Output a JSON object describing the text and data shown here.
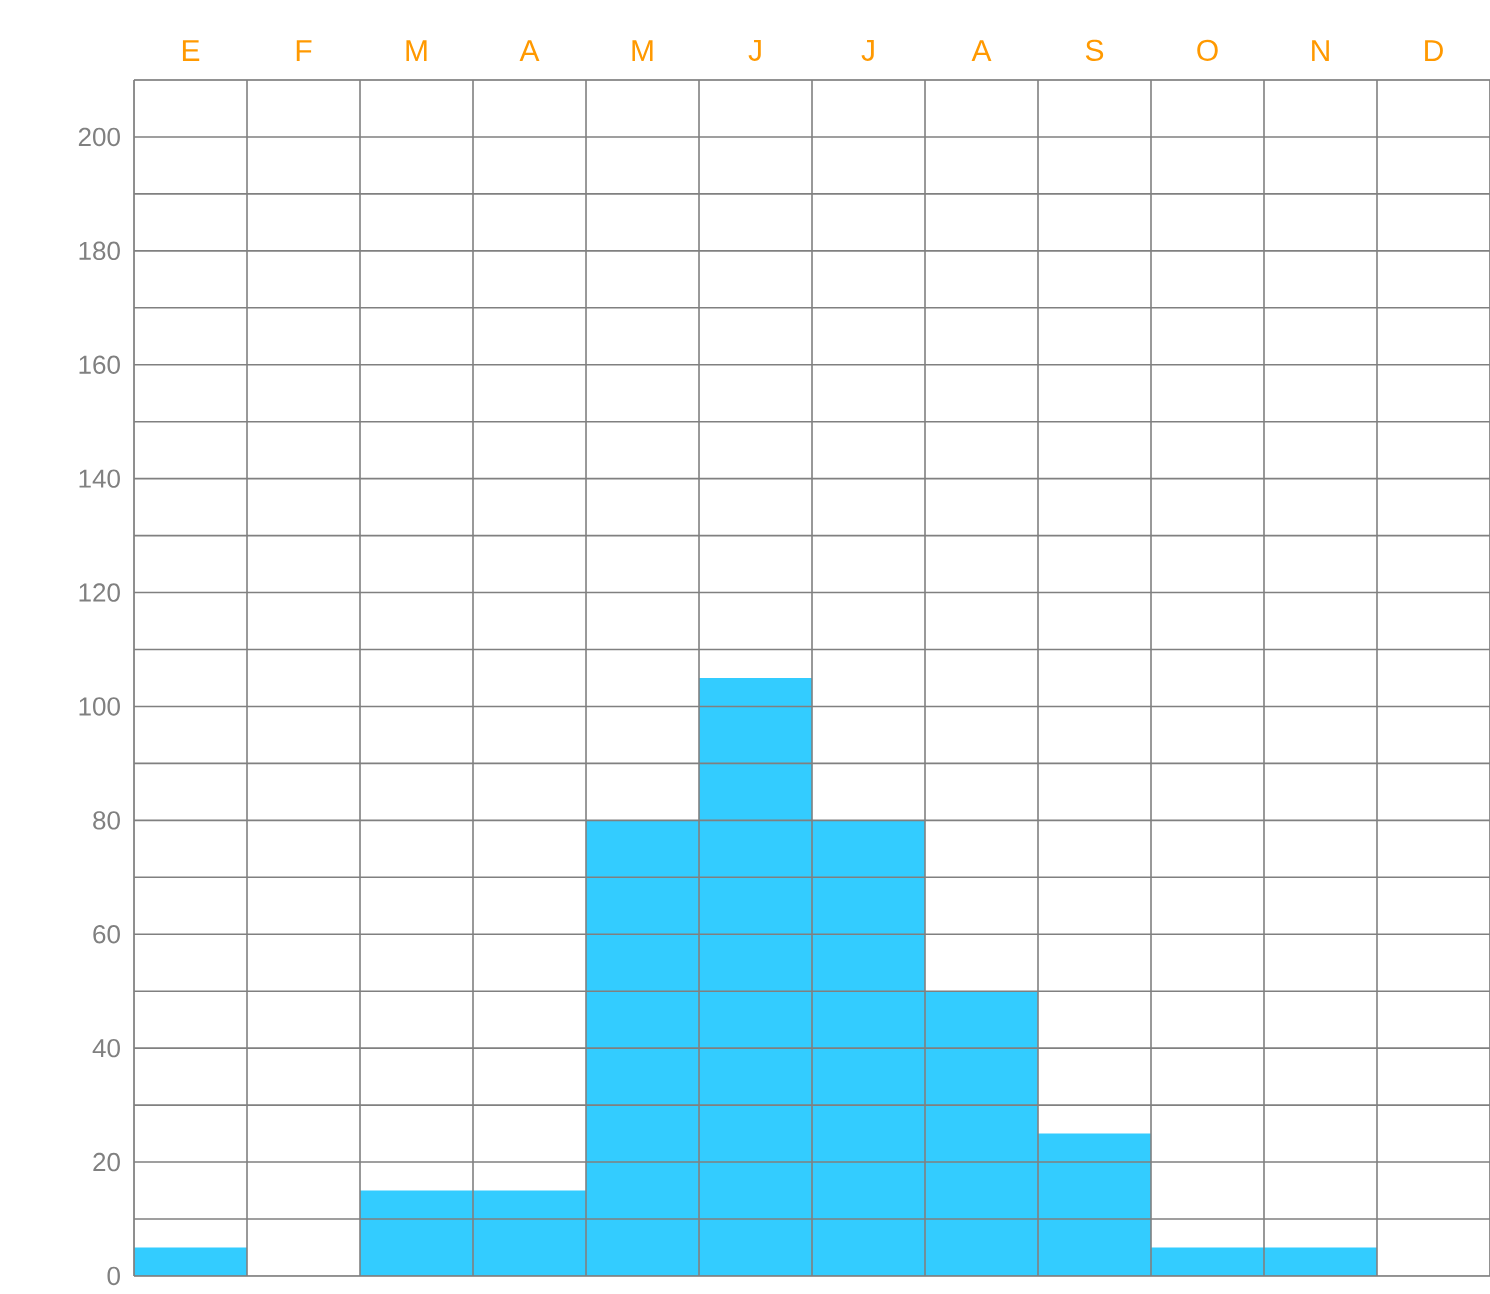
{
  "chart_data": {
    "type": "bar",
    "categories": [
      "E",
      "F",
      "M",
      "A",
      "M",
      "J",
      "J",
      "A",
      "S",
      "O",
      "N",
      "D"
    ],
    "values": [
      5,
      0,
      15,
      15,
      80,
      105,
      80,
      50,
      25,
      5,
      5,
      0
    ],
    "color": "#33ccff",
    "ylim": [
      0,
      210
    ],
    "yticks": [
      0,
      {
        "value": 10,
        "label": null
      },
      20,
      {
        "value": 30,
        "label": null
      },
      40,
      {
        "value": 50,
        "label": null
      },
      60,
      {
        "value": 70,
        "label": null
      },
      80,
      {
        "value": 90,
        "label": null
      },
      100,
      {
        "value": 110,
        "label": null
      },
      120,
      {
        "value": 130,
        "label": null
      },
      140,
      {
        "value": 150,
        "label": null
      },
      160,
      {
        "value": 170,
        "label": null
      },
      180,
      {
        "value": 190,
        "label": null
      },
      200,
      {
        "value": 210,
        "label": null
      }
    ],
    "grid": true
  }
}
